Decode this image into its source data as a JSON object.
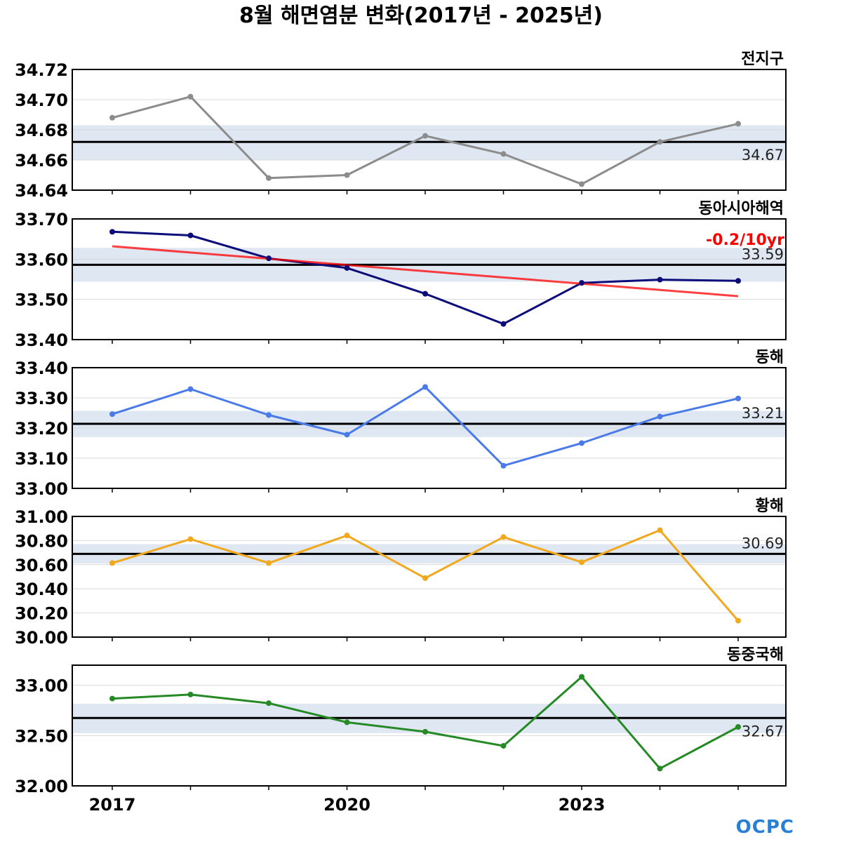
{
  "title": "8월 해면염분 변화(2017년 - 2025년)",
  "logo": "OCPC",
  "colors": {
    "band": "#dfe8f2",
    "grid": "#d9d9d9",
    "mean_line": "#000000",
    "trend_line": "#ff0000",
    "tick_year_text": "#000000"
  },
  "x_years": [
    2017,
    2018,
    2019,
    2020,
    2021,
    2022,
    2023,
    2024,
    2025
  ],
  "x_ticks": [
    "2017",
    "2020",
    "2023"
  ],
  "chart_data": [
    {
      "type": "line",
      "name": "전지구",
      "color": "#8c8c8c",
      "values": [
        34.688,
        34.702,
        34.648,
        34.65,
        34.676,
        34.664,
        34.644,
        34.672,
        34.684
      ],
      "mean": 34.672,
      "mean_label": "34.67",
      "band": [
        34.66,
        34.683
      ],
      "ylim": [
        34.64,
        34.72
      ],
      "yticks": [
        "34.72",
        "34.70",
        "34.68",
        "34.66",
        "34.64"
      ],
      "ytick_values": [
        34.72,
        34.7,
        34.68,
        34.66,
        34.64
      ]
    },
    {
      "type": "line",
      "name": "동아시아해역",
      "color": "#0b0b7a",
      "values": [
        33.668,
        33.659,
        33.602,
        33.578,
        33.514,
        33.439,
        33.541,
        33.549,
        33.546
      ],
      "mean": 33.586,
      "mean_label": "33.59",
      "band": [
        33.544,
        33.628
      ],
      "ylim": [
        33.4,
        33.7
      ],
      "yticks": [
        "33.70",
        "33.60",
        "33.50",
        "33.40"
      ],
      "ytick_values": [
        33.7,
        33.6,
        33.5,
        33.4
      ],
      "trend": {
        "label": "-0.2/10yr",
        "start": 33.632,
        "end": 33.508
      }
    },
    {
      "type": "line",
      "name": "동해",
      "color": "#4a7ae8",
      "values": [
        33.246,
        33.329,
        33.243,
        33.178,
        33.336,
        33.075,
        33.15,
        33.238,
        33.298
      ],
      "mean": 33.214,
      "mean_label": "33.21",
      "band": [
        33.17,
        33.257
      ],
      "ylim": [
        33.0,
        33.4
      ],
      "yticks": [
        "33.40",
        "33.30",
        "33.20",
        "33.10",
        "33.00"
      ],
      "ytick_values": [
        33.4,
        33.3,
        33.2,
        33.1,
        33.0
      ]
    },
    {
      "type": "line",
      "name": "황해",
      "color": "#f2a81d",
      "values": [
        30.614,
        30.812,
        30.614,
        30.842,
        30.489,
        30.829,
        30.621,
        30.886,
        30.136
      ],
      "mean": 30.69,
      "mean_label": "30.69",
      "band": [
        30.61,
        30.77
      ],
      "ylim": [
        30.0,
        31.0
      ],
      "yticks": [
        "31.00",
        "30.80",
        "30.60",
        "30.40",
        "30.20",
        "30.00"
      ],
      "ytick_values": [
        31.0,
        30.8,
        30.6,
        30.4,
        30.2,
        30.0
      ]
    },
    {
      "type": "line",
      "name": "동중국해",
      "color": "#258a25",
      "values": [
        32.868,
        32.908,
        32.822,
        32.632,
        32.538,
        32.398,
        33.084,
        32.172,
        32.586
      ],
      "mean": 32.675,
      "mean_label": "32.67",
      "band": [
        32.524,
        32.816
      ],
      "ylim": [
        32.0,
        33.2
      ],
      "yticks": [
        "33.00",
        "32.50",
        "32.00"
      ],
      "ytick_values": [
        33.0,
        32.5,
        32.0
      ]
    }
  ]
}
